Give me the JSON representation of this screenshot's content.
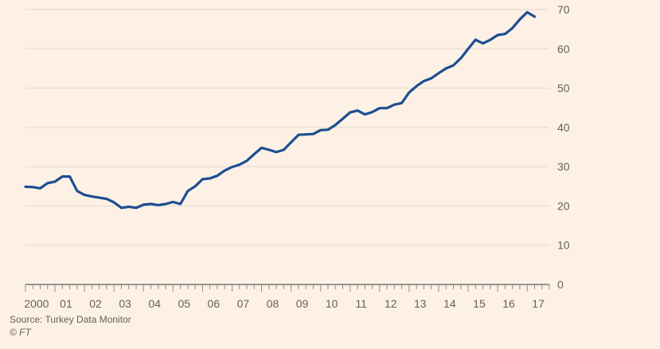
{
  "chart_data": {
    "type": "line",
    "xlabel": "",
    "ylabel": "",
    "ylim": [
      0,
      70
    ],
    "yticks": [
      0,
      10,
      20,
      30,
      40,
      50,
      60,
      70
    ],
    "xlim": [
      2000.0,
      2017.75
    ],
    "x_tick_labels": [
      {
        "x": 2000.375,
        "label": "2000"
      },
      {
        "x": 2001.375,
        "label": "01"
      },
      {
        "x": 2002.375,
        "label": "02"
      },
      {
        "x": 2003.375,
        "label": "03"
      },
      {
        "x": 2004.375,
        "label": "04"
      },
      {
        "x": 2005.375,
        "label": "05"
      },
      {
        "x": 2006.375,
        "label": "06"
      },
      {
        "x": 2007.375,
        "label": "07"
      },
      {
        "x": 2008.375,
        "label": "08"
      },
      {
        "x": 2009.375,
        "label": "09"
      },
      {
        "x": 2010.375,
        "label": "10"
      },
      {
        "x": 2011.375,
        "label": "11"
      },
      {
        "x": 2012.375,
        "label": "12"
      },
      {
        "x": 2013.375,
        "label": "13"
      },
      {
        "x": 2014.375,
        "label": "14"
      },
      {
        "x": 2015.375,
        "label": "15"
      },
      {
        "x": 2016.375,
        "label": "16"
      },
      {
        "x": 2017.375,
        "label": "17"
      }
    ],
    "grid": true,
    "series": [
      {
        "color": "#1d4e91",
        "x": [
          2000.0,
          2000.25,
          2000.5,
          2000.75,
          2001.0,
          2001.25,
          2001.5,
          2001.75,
          2002.0,
          2002.25,
          2002.5,
          2002.75,
          2003.0,
          2003.25,
          2003.5,
          2003.75,
          2004.0,
          2004.25,
          2004.5,
          2004.75,
          2005.0,
          2005.25,
          2005.5,
          2005.75,
          2006.0,
          2006.25,
          2006.5,
          2006.75,
          2007.0,
          2007.25,
          2007.5,
          2007.75,
          2008.0,
          2008.25,
          2008.5,
          2008.75,
          2009.0,
          2009.25,
          2009.5,
          2009.75,
          2010.0,
          2010.25,
          2010.5,
          2010.75,
          2011.0,
          2011.25,
          2011.5,
          2011.75,
          2012.0,
          2012.25,
          2012.5,
          2012.75,
          2013.0,
          2013.25,
          2013.5,
          2013.75,
          2014.0,
          2014.25,
          2014.5,
          2014.75,
          2015.0,
          2015.25,
          2015.5,
          2015.75,
          2016.0,
          2016.25,
          2016.5,
          2016.75,
          2017.0,
          2017.25
        ],
        "values": [
          24.9,
          24.8,
          24.5,
          25.8,
          26.2,
          27.5,
          27.5,
          23.8,
          22.8,
          22.4,
          22.1,
          21.8,
          20.9,
          19.5,
          19.8,
          19.5,
          20.3,
          20.5,
          20.2,
          20.5,
          21.0,
          20.5,
          23.8,
          25.0,
          26.8,
          27.0,
          27.7,
          29.0,
          29.9,
          30.5,
          31.5,
          33.2,
          34.8,
          34.3,
          33.7,
          34.3,
          36.2,
          38.1,
          38.2,
          38.3,
          39.3,
          39.4,
          40.6,
          42.2,
          43.8,
          44.3,
          43.3,
          43.9,
          44.9,
          44.9,
          45.8,
          46.2,
          48.9,
          50.5,
          51.8,
          52.5,
          53.8,
          55.0,
          55.8,
          57.6,
          60.0,
          62.3,
          61.4,
          62.3,
          63.5,
          63.8,
          65.3,
          67.5,
          69.3,
          68.2
        ]
      }
    ]
  },
  "footer": {
    "source": "Source: Turkey Data Monitor",
    "credit": "© FT"
  }
}
